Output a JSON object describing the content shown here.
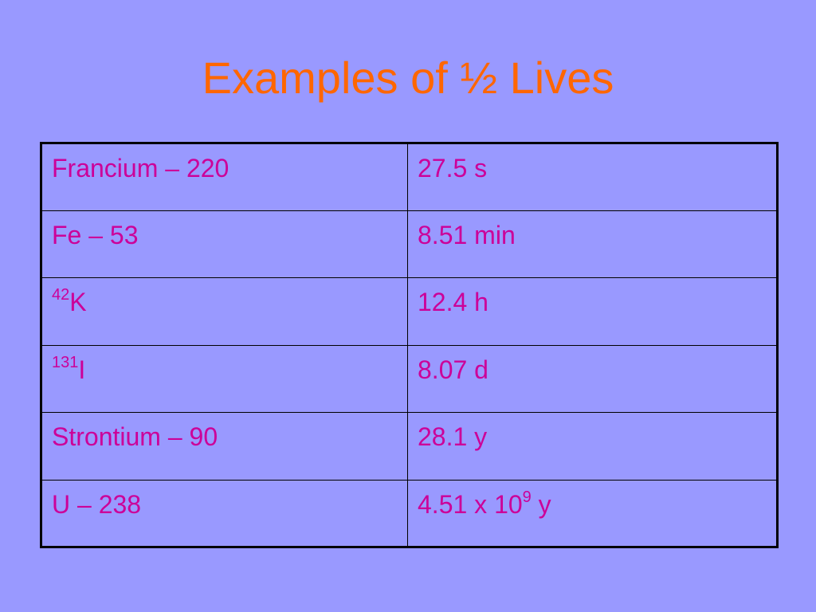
{
  "slide": {
    "title": "Examples of ½ Lives"
  },
  "table": {
    "rows": [
      {
        "isotope": "Francium – 220",
        "half_life": "27.5 s"
      },
      {
        "isotope": "Fe – 53",
        "half_life": "8.51 min"
      },
      {
        "isotope_mass": "42",
        "isotope_symbol": "K",
        "half_life": "12.4 h"
      },
      {
        "isotope_mass": "131",
        "isotope_symbol": "I",
        "half_life": "8.07 d"
      },
      {
        "isotope": "Strontium – 90",
        "half_life": "28.1 y"
      },
      {
        "isotope": "U – 238",
        "half_life_base": "4.51 x 10",
        "half_life_exp": "9",
        "half_life_unit": " y"
      }
    ]
  },
  "colors": {
    "background": "#9999ff",
    "title": "#ff6600",
    "table_text": "#cc0099",
    "border": "#000000"
  }
}
